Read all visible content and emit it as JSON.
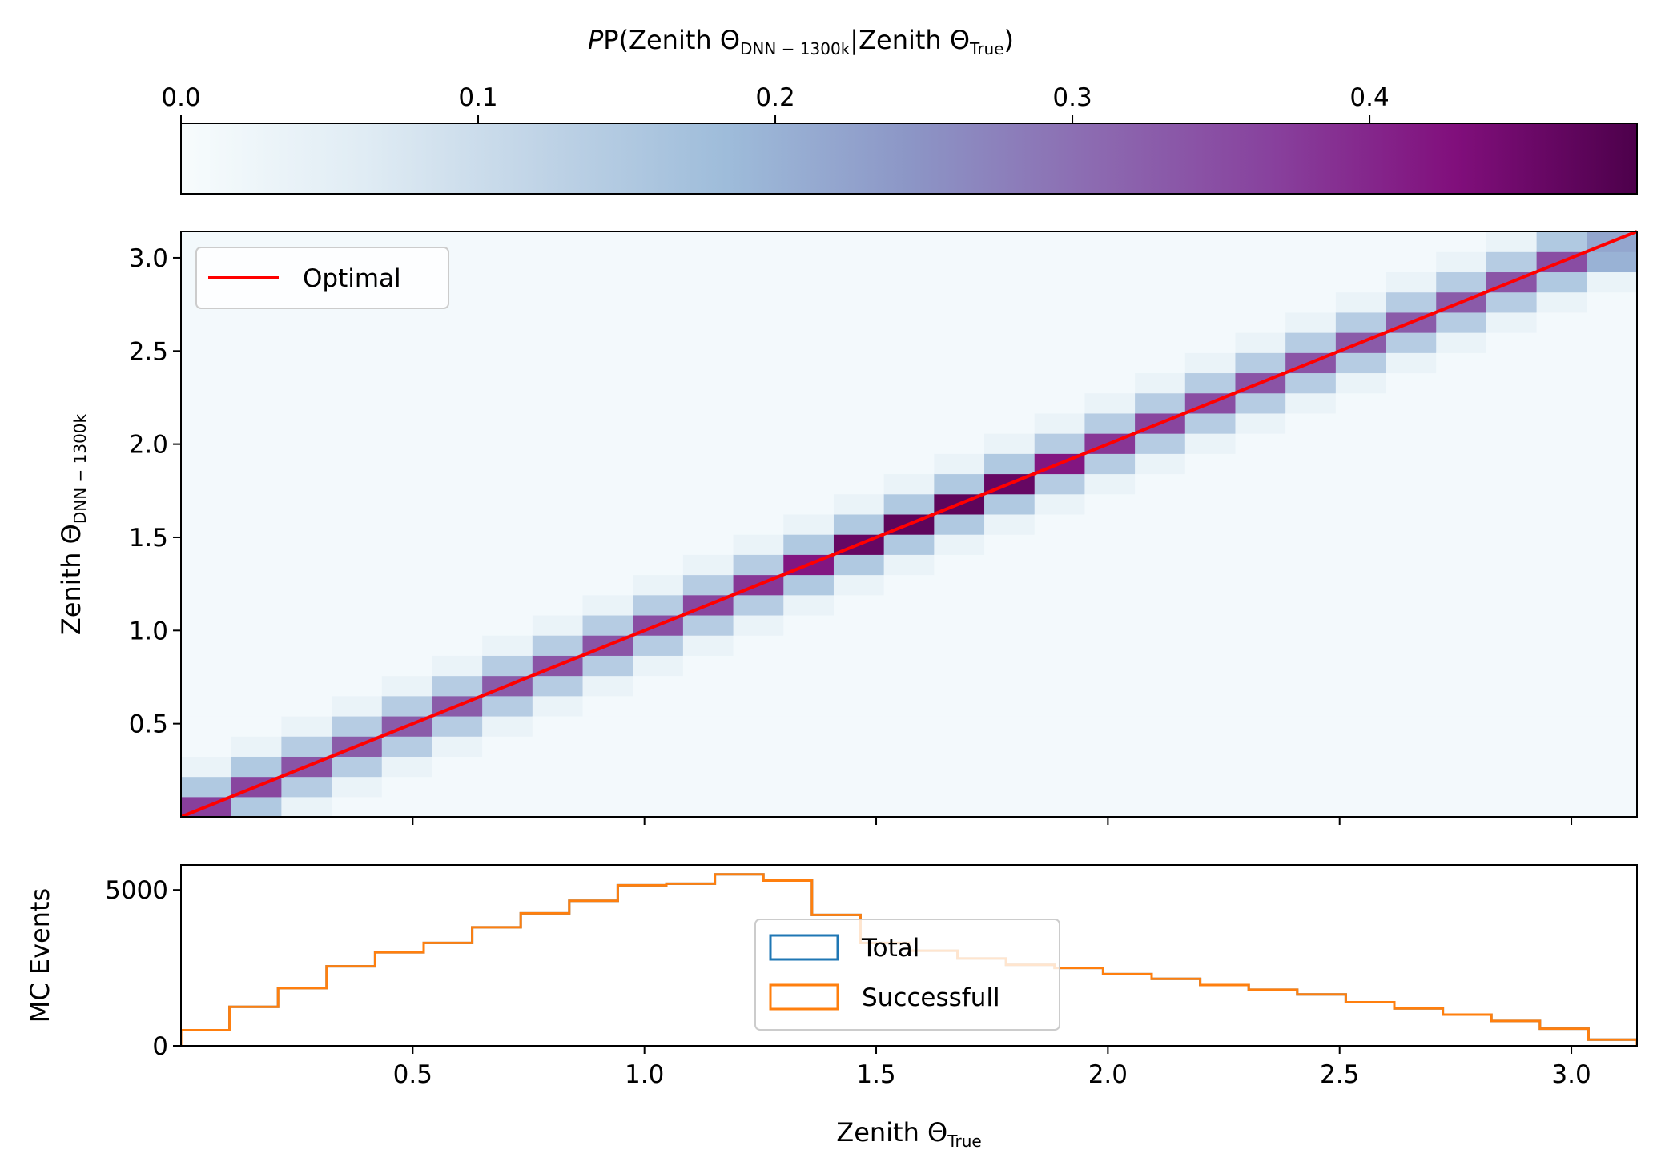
{
  "chart_data": [
    {
      "type": "heatmap",
      "colorbar": {
        "label_prefix": "P(Zenith Θ",
        "label_sub1": "DNN − 1300k",
        "label_mid": "|Zenith Θ",
        "label_sub2": "True",
        "label_suffix": ")",
        "range": [
          0.0,
          0.49
        ],
        "ticks": [
          "0.0",
          "0.1",
          "0.2",
          "0.3",
          "0.4"
        ],
        "tick_values": [
          0.0,
          0.1,
          0.2,
          0.3,
          0.4
        ],
        "colormap": "BuPu",
        "colors": [
          "#f7fcfd",
          "#e0ecf4",
          "#bfd3e6",
          "#9ebcda",
          "#8c96c6",
          "#8c6bb1",
          "#88419d",
          "#810f7c",
          "#4d004b"
        ]
      },
      "xlim": [
        0.0,
        3.1416
      ],
      "ylim": [
        0.0,
        3.1416
      ],
      "bins": 29,
      "ylabel_prefix": "Zenith Θ",
      "ylabel_sub": "DNN − 1300k",
      "yticks": [
        "0.5",
        "1.0",
        "1.5",
        "2.0",
        "2.5",
        "3.0"
      ],
      "ytick_values": [
        0.5,
        1.0,
        1.5,
        2.0,
        2.5,
        3.0
      ],
      "xtick_values": [
        0.5,
        1.0,
        1.5,
        2.0,
        2.5,
        3.0
      ],
      "diagonal_probability": [
        0.37,
        0.36,
        0.34,
        0.33,
        0.33,
        0.33,
        0.33,
        0.34,
        0.34,
        0.35,
        0.36,
        0.38,
        0.42,
        0.46,
        0.47,
        0.47,
        0.46,
        0.42,
        0.38,
        0.36,
        0.35,
        0.34,
        0.34,
        0.33,
        0.33,
        0.33,
        0.34,
        0.35,
        0.22
      ],
      "neighbor_probability": [
        0.15,
        0.15,
        0.14,
        0.14,
        0.14,
        0.14,
        0.14,
        0.14,
        0.14,
        0.14,
        0.14,
        0.14,
        0.15,
        0.15,
        0.15,
        0.15,
        0.15,
        0.14,
        0.14,
        0.14,
        0.14,
        0.14,
        0.14,
        0.14,
        0.14,
        0.14,
        0.14,
        0.15,
        0.2
      ],
      "background_probability": 0.01,
      "legend": {
        "line_label": "Optimal",
        "line_color": "#ff0000"
      }
    },
    {
      "type": "histogram",
      "ylabel": "MC Events",
      "xlabel_prefix": "Zenith Θ",
      "xlabel_sub": "True",
      "xlim": [
        0.0,
        3.1416
      ],
      "ylim": [
        0,
        5800
      ],
      "yticks": [
        "0",
        "5000"
      ],
      "ytick_values": [
        0,
        5000
      ],
      "xticks": [
        "0.5",
        "1.0",
        "1.5",
        "2.0",
        "2.5",
        "3.0"
      ],
      "xtick_values": [
        0.5,
        1.0,
        1.5,
        2.0,
        2.5,
        3.0
      ],
      "series": [
        {
          "name": "Total",
          "color": "#1f77b4",
          "values": [
            500,
            1250,
            1850,
            2550,
            3000,
            3300,
            3800,
            4250,
            4650,
            5150,
            5200,
            5500,
            5300,
            4200,
            3300,
            3050,
            2800,
            2600,
            2500,
            2300,
            2150,
            1950,
            1800,
            1650,
            1400,
            1200,
            1000,
            800,
            550,
            200
          ]
        },
        {
          "name": "Successfull",
          "color": "#ff7f0e",
          "values": [
            500,
            1250,
            1850,
            2550,
            3000,
            3300,
            3800,
            4250,
            4650,
            5150,
            5200,
            5500,
            5300,
            4200,
            3300,
            3050,
            2800,
            2600,
            2500,
            2300,
            2150,
            1950,
            1800,
            1650,
            1400,
            1200,
            1000,
            800,
            550,
            200
          ]
        }
      ]
    }
  ]
}
